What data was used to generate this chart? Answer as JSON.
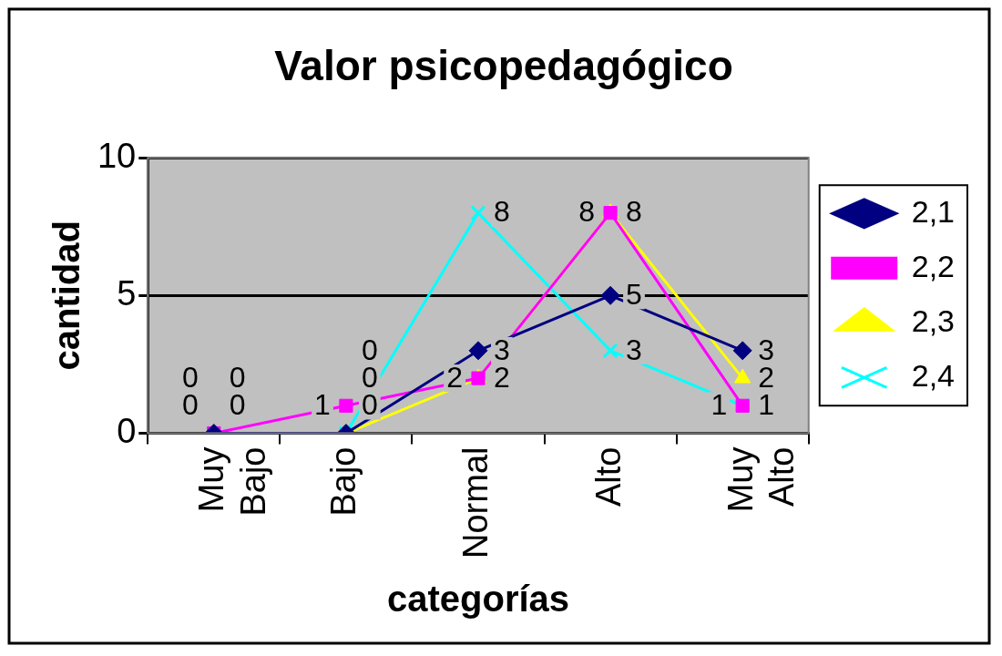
{
  "chart_data": {
    "type": "line",
    "title": "Valor psicopedagógico",
    "xlabel": "categorías",
    "ylabel": "cantidad",
    "categories": [
      "Muy Bajo",
      "Bajo",
      "Normal",
      "Alto",
      "Muy Alto"
    ],
    "series": [
      {
        "name": "2,1",
        "color": "#000080",
        "values": [
          0,
          0,
          3,
          5,
          3
        ],
        "marker": "diamond"
      },
      {
        "name": "2,2",
        "color": "#ff00ff",
        "values": [
          0,
          1,
          2,
          8,
          1
        ],
        "marker": "square"
      },
      {
        "name": "2,3",
        "color": "#ffff00",
        "values": [
          0,
          0,
          2,
          8,
          2
        ],
        "marker": "triangle"
      },
      {
        "name": "2,4",
        "color": "#00ffff",
        "values": [
          0,
          0,
          8,
          3,
          1
        ],
        "marker": "cross"
      }
    ],
    "ylim": [
      0,
      10
    ],
    "yticks": [
      0,
      5,
      10
    ],
    "grid": "y",
    "legend": "right",
    "data_labels": true
  }
}
